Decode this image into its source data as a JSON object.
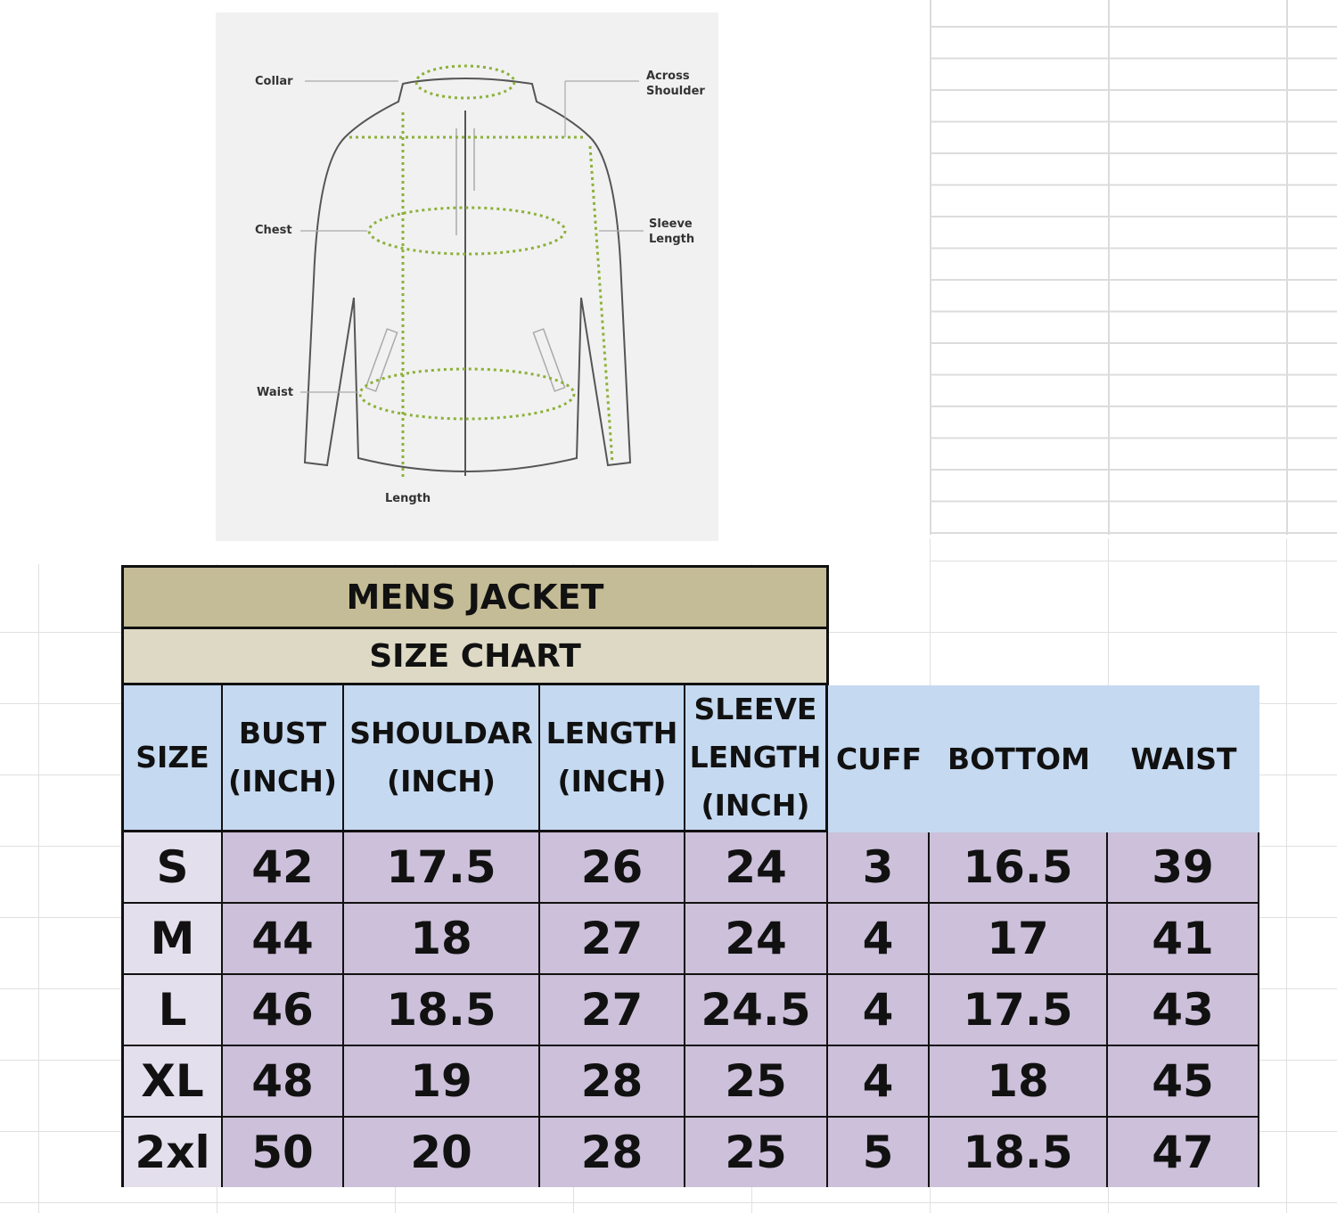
{
  "diagram": {
    "labels": {
      "collar": "Collar",
      "across_shoulder": "Across Shoulder",
      "chest": "Chest",
      "sleeve_length": "Sleeve Length",
      "waist": "Waist",
      "length": "Length"
    },
    "measure_line_color": "#8db13a"
  },
  "table": {
    "title": "MENS JACKET",
    "subtitle": "SIZE CHART",
    "headers": [
      "SIZE",
      "BUST (INCH)",
      "SHOULDAR (INCH)",
      "LENGTH (INCH)",
      "SLEEVE LENGTH (INCH)",
      "CUFF",
      "BOTTOM",
      "WAIST"
    ],
    "rows": [
      [
        "S",
        "42",
        "17.5",
        "26",
        "24",
        "3",
        "16.5",
        "39"
      ],
      [
        "M",
        "44",
        "18",
        "27",
        "24",
        "4",
        "17",
        "41"
      ],
      [
        "L",
        "46",
        "18.5",
        "27",
        "24.5",
        "4",
        "17.5",
        "43"
      ],
      [
        "XL",
        "48",
        "19",
        "28",
        "25",
        "4",
        "18",
        "45"
      ],
      [
        "2xl",
        "50",
        "20",
        "28",
        "25",
        "5",
        "18.5",
        "47"
      ]
    ],
    "colors": {
      "title_bg": "#c4bc96",
      "subtitle_bg": "#ddd9c4",
      "header_bg": "#c5d9f1",
      "size_col_bg": "#e4dfec",
      "value_bg": "#ccc0da"
    }
  }
}
